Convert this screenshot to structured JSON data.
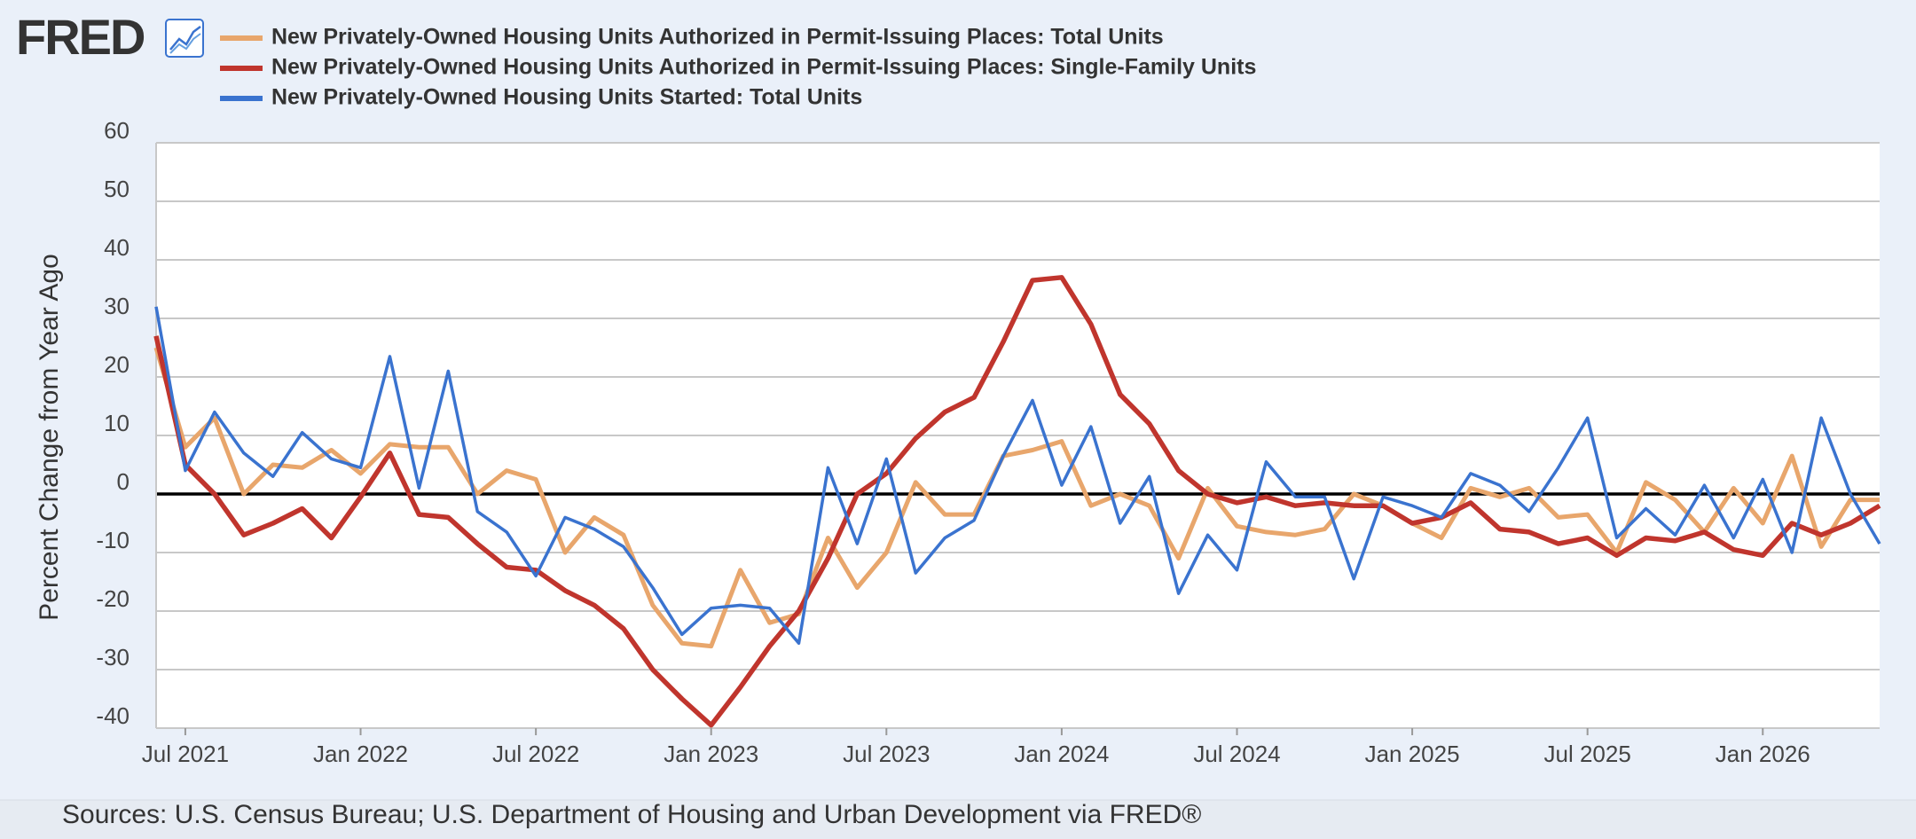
{
  "chart_data": {
    "type": "line",
    "logo": "FRED",
    "y_label": "Percent Change from Year Ago",
    "source": "Sources: U.S. Census Bureau; U.S. Department of Housing and Urban Development via FRED®",
    "x": [
      "2021-06",
      "2021-07",
      "2021-08",
      "2021-09",
      "2021-10",
      "2021-11",
      "2021-12",
      "2022-01",
      "2022-02",
      "2022-03",
      "2022-04",
      "2022-05",
      "2022-06",
      "2022-07",
      "2022-08",
      "2022-09",
      "2022-10",
      "2022-11",
      "2022-12",
      "2023-01",
      "2023-02",
      "2023-03",
      "2023-04",
      "2023-05",
      "2023-06",
      "2023-07",
      "2023-08",
      "2023-09",
      "2023-10",
      "2023-11",
      "2023-12",
      "2024-01",
      "2024-02",
      "2024-03",
      "2024-04",
      "2024-05",
      "2024-06",
      "2024-07",
      "2024-08",
      "2024-09",
      "2024-10",
      "2024-11",
      "2024-12",
      "2025-01",
      "2025-02",
      "2025-03",
      "2025-04",
      "2025-05",
      "2025-06",
      "2025-07",
      "2025-08",
      "2025-09",
      "2025-10",
      "2025-11",
      "2025-12",
      "2026-01",
      "2026-02",
      "2026-03",
      "2026-04",
      "2026-05"
    ],
    "xlim": [
      "2021-06",
      "2026-05"
    ],
    "xticks": [
      {
        "value": "2021-07",
        "label": "Jul 2021"
      },
      {
        "value": "2022-01",
        "label": "Jan 2022"
      },
      {
        "value": "2022-07",
        "label": "Jul 2022"
      },
      {
        "value": "2023-01",
        "label": "Jan 2023"
      },
      {
        "value": "2023-07",
        "label": "Jul 2023"
      },
      {
        "value": "2024-01",
        "label": "Jan 2024"
      },
      {
        "value": "2024-07",
        "label": "Jul 2024"
      },
      {
        "value": "2025-01",
        "label": "Jan 2025"
      },
      {
        "value": "2025-07",
        "label": "Jul 2025"
      },
      {
        "value": "2026-01",
        "label": "Jan 2026"
      }
    ],
    "ylim": [
      -40,
      60
    ],
    "yticks": [
      -40,
      -30,
      -20,
      -10,
      0,
      10,
      20,
      30,
      40,
      50,
      60
    ],
    "grid": true,
    "series": [
      {
        "name": "New Privately-Owned Housing Units Authorized in Permit-Issuing Places: Total Units",
        "color": "#e8a66c",
        "values": [
          25,
          8,
          13,
          0,
          5,
          4.5,
          7.5,
          3.5,
          8.5,
          8,
          8,
          0,
          4,
          2.5,
          -10,
          -4,
          -7,
          -19,
          -25.5,
          -26,
          -13,
          -22,
          -20.5,
          -7.5,
          -16,
          -10,
          2,
          -3.5,
          -3.5,
          6.5,
          7.5,
          9,
          -2,
          0,
          -2,
          -11,
          1,
          -5.5,
          -6.5,
          -7,
          -6,
          0,
          -2,
          -5,
          -7.5,
          1,
          -0.5,
          1,
          -4,
          -3.5,
          -10,
          2,
          -1,
          -6.5,
          1,
          -5,
          6.5,
          -9,
          -1,
          -1
        ]
      },
      {
        "name": "New Privately-Owned Housing Units Authorized in Permit-Issuing Places: Single-Family Units",
        "color": "#c0352d",
        "values": [
          27,
          5,
          0,
          -7,
          -5,
          -2.5,
          -7.5,
          -0.5,
          7,
          -3.5,
          -4,
          -8.5,
          -12.5,
          -13,
          -16.5,
          -19,
          -23,
          -30,
          -35,
          -39.5,
          -33,
          -26,
          -20,
          -11,
          0,
          3.5,
          9.5,
          14,
          16.5,
          26,
          36.5,
          37,
          29,
          17,
          12,
          4,
          0,
          -1.5,
          -0.5,
          -2,
          -1.5,
          -2,
          -2,
          -5,
          -4,
          -1.5,
          -6,
          -6.5,
          -8.5,
          -7.5,
          -10.5,
          -7.5,
          -8,
          -6.5,
          -9.5,
          -10.5,
          -5,
          -7,
          -5,
          -2
        ]
      },
      {
        "name": "New Privately-Owned Housing Units Started: Total Units",
        "color": "#3a73cf",
        "values": [
          32,
          4,
          14,
          7,
          3,
          10.5,
          6,
          4.5,
          23.5,
          1,
          21,
          -3,
          -6.5,
          -14,
          -4,
          -6,
          -9,
          -16,
          -24,
          -19.5,
          -19,
          -19.5,
          -25.5,
          4.5,
          -8.5,
          6,
          -13.5,
          -7.5,
          -4.5,
          6.5,
          16,
          1.5,
          11.5,
          -5,
          3,
          -17,
          -7,
          -13,
          5.5,
          -0.5,
          -0.5,
          -14.5,
          -0.5,
          -2,
          -4,
          3.5,
          1.5,
          -3,
          4.5,
          13,
          -7.5,
          -2.5,
          -7,
          1.5,
          -7.5,
          2.5,
          -10,
          13,
          0,
          -8.5
        ]
      }
    ]
  }
}
